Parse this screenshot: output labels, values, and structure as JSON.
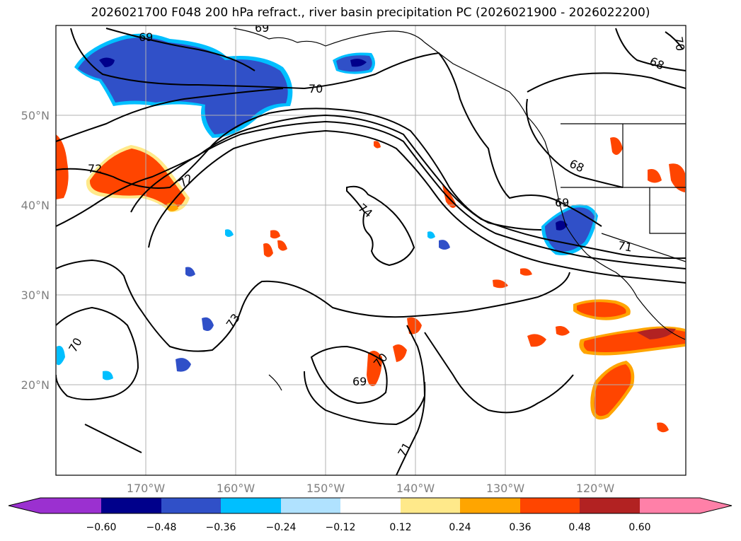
{
  "title": "2026021700 F048 200 hPa refract., river basin precipitation PC (2026021900 - 2026022200)",
  "map": {
    "lon_range": [
      -180,
      -110
    ],
    "lat_range": [
      10,
      60
    ],
    "lat_labels": [
      "50°N",
      "40°N",
      "30°N",
      "20°N"
    ],
    "lon_labels": [
      "170°W",
      "160°W",
      "150°W",
      "140°W",
      "130°W",
      "120°W"
    ],
    "contour_labels": [
      "69",
      "70",
      "69",
      "72",
      "72",
      "74",
      "68",
      "69",
      "71",
      "73",
      "70",
      "69",
      "70",
      "71",
      "68",
      "70"
    ]
  },
  "colorbar": {
    "ticks": [
      "−0.60",
      "−0.48",
      "−0.36",
      "−0.24",
      "−0.12",
      "0.12",
      "0.24",
      "0.36",
      "0.48",
      "0.60"
    ],
    "colors": [
      "#9b30d0",
      "#00008b",
      "#3050c8",
      "#00bfff",
      "#b0e2ff",
      "#ffffff",
      "#ffe98a",
      "#ffa500",
      "#ff4500",
      "#b22222",
      "#ff80a8"
    ]
  }
}
